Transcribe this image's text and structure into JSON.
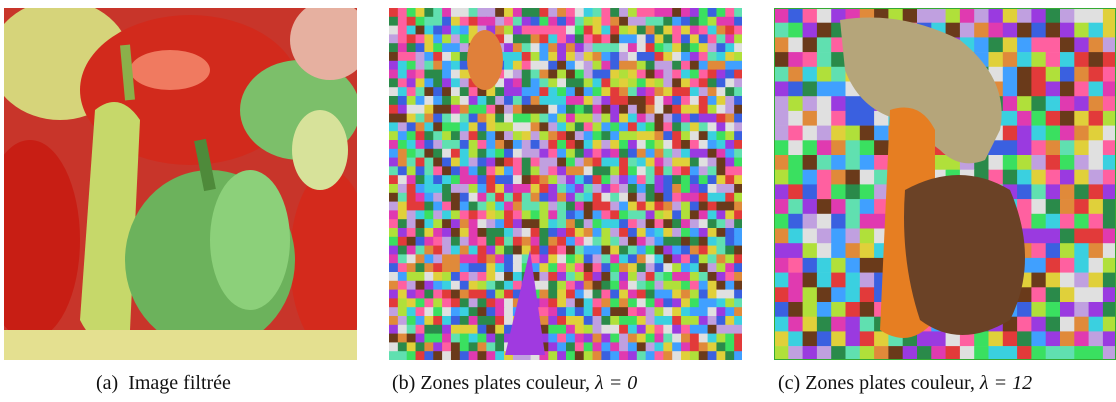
{
  "figure": {
    "panels": [
      {
        "label": "(a)",
        "caption": "Image filtrée"
      },
      {
        "label": "(b)",
        "caption": "Zones plates couleur,",
        "math": "λ = 0"
      },
      {
        "label": "(c)",
        "caption": "Zones plates couleur,",
        "math": "λ = 12"
      }
    ]
  }
}
